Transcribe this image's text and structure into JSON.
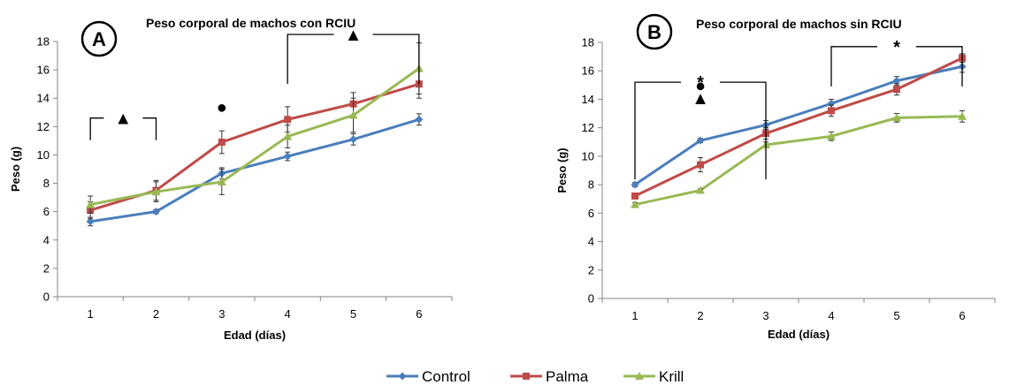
{
  "legend": [
    {
      "name": "Control",
      "color": "#4A7EBB",
      "marker": "diamond"
    },
    {
      "name": "Palma",
      "color": "#BE4B48",
      "marker": "square"
    },
    {
      "name": "Krill",
      "color": "#98B954",
      "marker": "triangle"
    }
  ],
  "chart_data": [
    {
      "type": "line",
      "panel_label": "A",
      "title": "Peso corporal de machos con RCIU",
      "xlabel": "Edad (días)",
      "ylabel": "Peso (g)",
      "categories": [
        "1",
        "2",
        "3",
        "4",
        "5",
        "6"
      ],
      "ylim": [
        0,
        18
      ],
      "yticks": [
        "0",
        "2",
        "4",
        "6",
        "8",
        "10",
        "12",
        "14",
        "16",
        "18"
      ],
      "grid": false,
      "legend_position": "bottom",
      "series": [
        {
          "name": "Control",
          "values": [
            5.3,
            6.0,
            8.7,
            9.9,
            11.1,
            12.5
          ],
          "errors": [
            0.3,
            0.15,
            0.4,
            0.3,
            0.4,
            0.4
          ]
        },
        {
          "name": "Palma",
          "values": [
            6.1,
            7.5,
            10.9,
            12.5,
            13.6,
            15.0
          ],
          "errors": [
            0.6,
            0.7,
            0.8,
            0.9,
            0.8,
            1.0
          ]
        },
        {
          "name": "Krill",
          "values": [
            6.5,
            7.4,
            8.1,
            11.3,
            12.8,
            16.1
          ],
          "errors": [
            0.6,
            0.7,
            0.9,
            0.8,
            1.2,
            1.8
          ]
        }
      ],
      "annotations": [
        {
          "text": "▲",
          "from": "1",
          "to": "2",
          "bracket_at": 12.6
        },
        {
          "text": "●",
          "at": "3",
          "y_value": 13.4
        },
        {
          "text": "▲",
          "from": "4",
          "to": "6",
          "bracket_at": 18.5
        }
      ]
    },
    {
      "type": "line",
      "panel_label": "B",
      "title": "Peso corporal de machos sin RCIU",
      "xlabel": "Edad (días)",
      "ylabel": "Peso (g)",
      "categories": [
        "1",
        "2",
        "3",
        "4",
        "5",
        "6"
      ],
      "ylim": [
        0,
        18
      ],
      "yticks": [
        "0",
        "2",
        "4",
        "6",
        "8",
        "10",
        "12",
        "14",
        "16",
        "18"
      ],
      "grid": false,
      "legend_position": "bottom",
      "series": [
        {
          "name": "Control",
          "values": [
            8.0,
            11.1,
            12.2,
            13.7,
            15.3,
            16.3
          ],
          "errors": [
            0.15,
            0.15,
            0.3,
            0.3,
            0.3,
            0.4
          ]
        },
        {
          "name": "Palma",
          "values": [
            7.2,
            9.4,
            11.6,
            13.2,
            14.7,
            16.9
          ],
          "errors": [
            0.15,
            0.5,
            0.4,
            0.4,
            0.4,
            0.3
          ]
        },
        {
          "name": "Krill",
          "values": [
            6.6,
            7.6,
            10.8,
            11.4,
            12.7,
            12.8
          ],
          "errors": [
            0.15,
            0.1,
            0.2,
            0.3,
            0.3,
            0.4
          ]
        }
      ],
      "annotations": [
        {
          "text": "*",
          "from": "1",
          "to": "3",
          "bracket_at": 15.2
        },
        {
          "text": "●",
          "at": "2",
          "y_value": 15.0
        },
        {
          "text": "▲",
          "at": "2",
          "y_value": 14.1
        },
        {
          "text": "*",
          "from": "4",
          "to": "6",
          "bracket_at": 17.7
        }
      ]
    }
  ]
}
